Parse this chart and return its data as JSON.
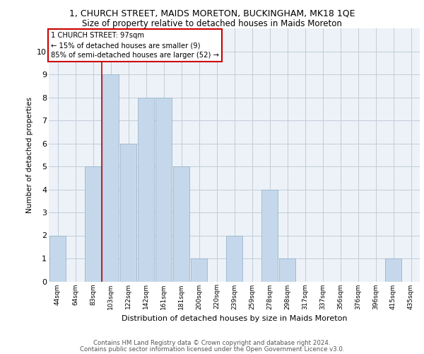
{
  "title": "1, CHURCH STREET, MAIDS MORETON, BUCKINGHAM, MK18 1QE",
  "subtitle": "Size of property relative to detached houses in Maids Moreton",
  "xlabel": "Distribution of detached houses by size in Maids Moreton",
  "ylabel": "Number of detached properties",
  "categories": [
    "44sqm",
    "64sqm",
    "83sqm",
    "103sqm",
    "122sqm",
    "142sqm",
    "161sqm",
    "181sqm",
    "200sqm",
    "220sqm",
    "239sqm",
    "259sqm",
    "278sqm",
    "298sqm",
    "317sqm",
    "337sqm",
    "356sqm",
    "376sqm",
    "396sqm",
    "415sqm",
    "435sqm"
  ],
  "values": [
    2,
    0,
    5,
    9,
    6,
    8,
    8,
    5,
    1,
    0,
    2,
    0,
    4,
    1,
    0,
    0,
    0,
    0,
    0,
    1,
    0
  ],
  "bar_color": "#c5d8eb",
  "bar_edgecolor": "#9ab5cc",
  "vline_x": 2.5,
  "vline_color": "#cc0000",
  "annotation_box_text": "1 CHURCH STREET: 97sqm\n← 15% of detached houses are smaller (9)\n85% of semi-detached houses are larger (52) →",
  "annotation_box_color": "#cc0000",
  "ylim": [
    0,
    11
  ],
  "yticks": [
    0,
    1,
    2,
    3,
    4,
    5,
    6,
    7,
    8,
    9,
    10,
    11
  ],
  "footer1": "Contains HM Land Registry data © Crown copyright and database right 2024.",
  "footer2": "Contains public sector information licensed under the Open Government Licence v3.0.",
  "bg_color": "#edf2f8",
  "grid_color": "#c0ccd8"
}
